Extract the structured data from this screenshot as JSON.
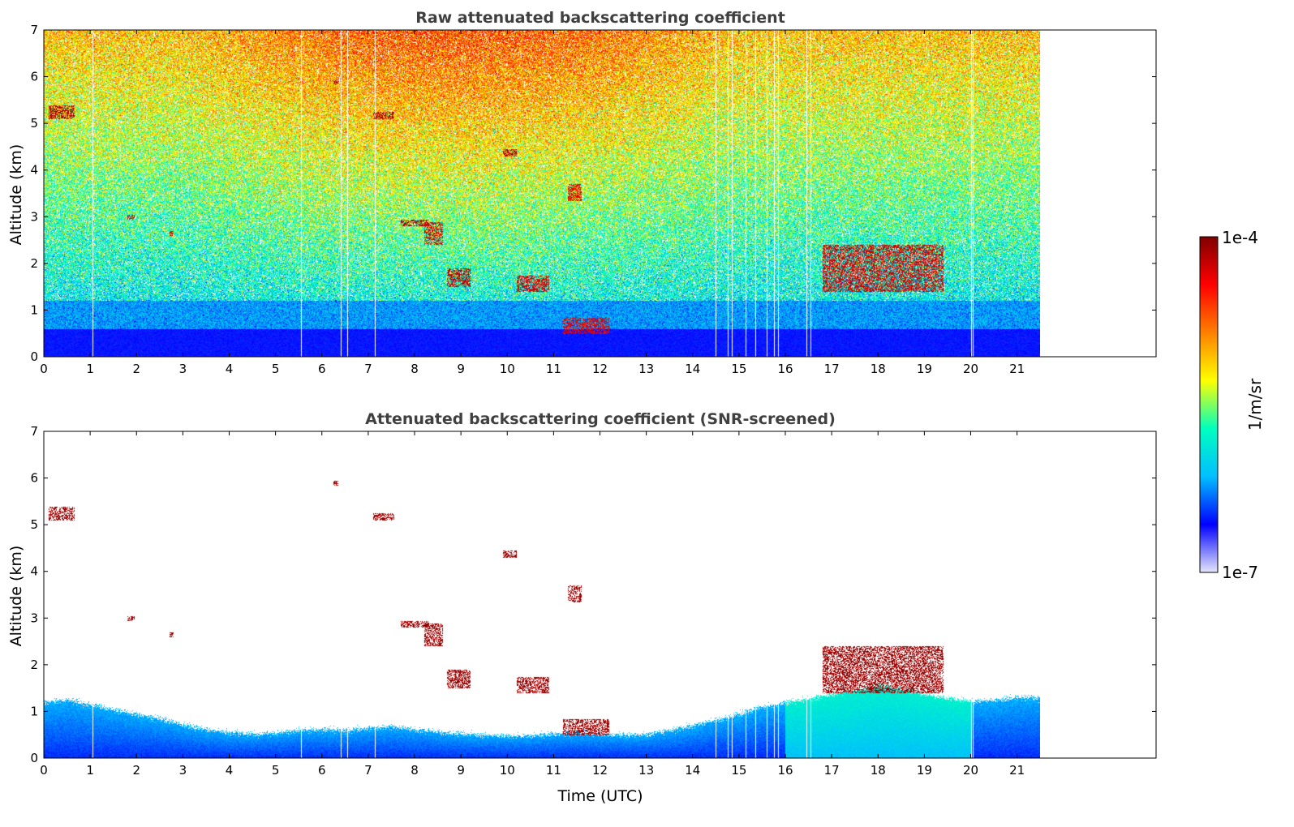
{
  "chart_data": [
    {
      "type": "heatmap",
      "title": "Raw attenuated backscattering coefficient",
      "xlabel": "",
      "ylabel": "Altitude (km)",
      "xlim": [
        0,
        24
      ],
      "ylim": [
        0,
        7
      ],
      "data_extent_x": [
        0,
        21.5
      ],
      "xticks": [
        "0",
        "1",
        "2",
        "3",
        "4",
        "5",
        "6",
        "7",
        "8",
        "9",
        "10",
        "11",
        "12",
        "13",
        "14",
        "15",
        "16",
        "17",
        "18",
        "19",
        "20",
        "21"
      ],
      "yticks": [
        "0",
        "1",
        "2",
        "3",
        "4",
        "5",
        "6",
        "7"
      ],
      "colorscale": "jet",
      "background": "noisy",
      "gaps_utc": [
        1.05,
        5.55,
        6.4,
        6.55,
        7.15,
        14.5,
        14.75,
        14.85,
        15.15,
        15.35,
        15.6,
        15.75,
        15.85,
        16.45,
        16.55,
        20.0,
        20.05
      ],
      "features": [
        {
          "x0": 0.1,
          "x1": 0.65,
          "y0": 5.1,
          "y1": 5.4,
          "level": 0.95
        },
        {
          "x0": 1.8,
          "x1": 1.95,
          "y0": 2.95,
          "y1": 3.05,
          "level": 0.9
        },
        {
          "x0": 2.7,
          "x1": 2.8,
          "y0": 2.6,
          "y1": 2.7,
          "level": 0.9
        },
        {
          "x0": 6.25,
          "x1": 6.35,
          "y0": 5.85,
          "y1": 5.95,
          "level": 0.95
        },
        {
          "x0": 7.1,
          "x1": 7.55,
          "y0": 5.1,
          "y1": 5.25,
          "level": 0.95
        },
        {
          "x0": 7.7,
          "x1": 8.3,
          "y0": 2.8,
          "y1": 2.95,
          "level": 0.95
        },
        {
          "x0": 8.2,
          "x1": 8.6,
          "y0": 2.4,
          "y1": 2.9,
          "level": 0.9
        },
        {
          "x0": 8.7,
          "x1": 9.2,
          "y0": 1.5,
          "y1": 1.9,
          "level": 0.92
        },
        {
          "x0": 9.9,
          "x1": 10.2,
          "y0": 4.3,
          "y1": 4.45,
          "level": 0.95
        },
        {
          "x0": 10.2,
          "x1": 10.9,
          "y0": 1.4,
          "y1": 1.75,
          "level": 0.9
        },
        {
          "x0": 11.2,
          "x1": 12.2,
          "y0": 0.5,
          "y1": 0.85,
          "level": 0.88
        },
        {
          "x0": 11.3,
          "x1": 11.6,
          "y0": 3.35,
          "y1": 3.7,
          "level": 0.88
        },
        {
          "x0": 16.8,
          "x1": 19.4,
          "y0": 1.4,
          "y1": 2.4,
          "level": 0.9
        }
      ]
    },
    {
      "type": "heatmap",
      "title": "Attenuated backscattering coefficient (SNR-screened)",
      "xlabel": "Time (UTC)",
      "ylabel": "Altitude (km)",
      "xlim": [
        0,
        24
      ],
      "ylim": [
        0,
        7
      ],
      "data_extent_x": [
        0,
        21.5
      ],
      "xticks": [
        "0",
        "1",
        "2",
        "3",
        "4",
        "5",
        "6",
        "7",
        "8",
        "9",
        "10",
        "11",
        "12",
        "13",
        "14",
        "15",
        "16",
        "17",
        "18",
        "19",
        "20",
        "21"
      ],
      "yticks": [
        "0",
        "1",
        "2",
        "3",
        "4",
        "5",
        "6",
        "7"
      ],
      "colorscale": "jet",
      "background": "screened",
      "boundary_layer_top_km": [
        [
          0,
          1.2
        ],
        [
          0.5,
          1.25
        ],
        [
          1.0,
          1.15
        ],
        [
          1.5,
          1.05
        ],
        [
          2.0,
          0.95
        ],
        [
          2.5,
          0.85
        ],
        [
          3.0,
          0.72
        ],
        [
          3.5,
          0.62
        ],
        [
          4.0,
          0.55
        ],
        [
          4.5,
          0.52
        ],
        [
          5.0,
          0.55
        ],
        [
          5.5,
          0.6
        ],
        [
          6.0,
          0.62
        ],
        [
          6.5,
          0.6
        ],
        [
          7.0,
          0.65
        ],
        [
          7.5,
          0.68
        ],
        [
          8.0,
          0.62
        ],
        [
          8.5,
          0.57
        ],
        [
          9.0,
          0.52
        ],
        [
          9.5,
          0.5
        ],
        [
          10.0,
          0.48
        ],
        [
          10.5,
          0.5
        ],
        [
          11.0,
          0.52
        ],
        [
          11.5,
          0.55
        ],
        [
          12.0,
          0.52
        ],
        [
          12.5,
          0.5
        ],
        [
          13.0,
          0.52
        ],
        [
          13.5,
          0.6
        ],
        [
          14.0,
          0.7
        ],
        [
          14.5,
          0.82
        ],
        [
          15.0,
          0.95
        ],
        [
          15.5,
          1.1
        ],
        [
          16.0,
          1.2
        ],
        [
          16.5,
          1.28
        ],
        [
          17.0,
          1.38
        ],
        [
          17.5,
          1.45
        ],
        [
          18.0,
          1.55
        ],
        [
          18.5,
          1.5
        ],
        [
          19.0,
          1.38
        ],
        [
          19.5,
          1.28
        ],
        [
          20.0,
          1.22
        ],
        [
          20.5,
          1.25
        ],
        [
          21.0,
          1.3
        ],
        [
          21.5,
          1.3
        ]
      ],
      "gaps_utc": [
        1.05,
        5.55,
        6.4,
        6.55,
        7.15,
        14.5,
        14.75,
        14.85,
        15.15,
        15.35,
        15.6,
        15.75,
        15.85,
        16.45,
        16.55,
        20.0,
        20.05
      ],
      "features": [
        {
          "x0": 0.1,
          "x1": 0.65,
          "y0": 5.1,
          "y1": 5.4,
          "level": 0.97
        },
        {
          "x0": 1.8,
          "x1": 1.95,
          "y0": 2.95,
          "y1": 3.05,
          "level": 0.97
        },
        {
          "x0": 2.7,
          "x1": 2.8,
          "y0": 2.6,
          "y1": 2.7,
          "level": 0.97
        },
        {
          "x0": 6.25,
          "x1": 6.35,
          "y0": 5.85,
          "y1": 5.95,
          "level": 0.97
        },
        {
          "x0": 7.1,
          "x1": 7.55,
          "y0": 5.1,
          "y1": 5.25,
          "level": 0.97
        },
        {
          "x0": 7.7,
          "x1": 8.3,
          "y0": 2.8,
          "y1": 2.95,
          "level": 0.97
        },
        {
          "x0": 8.2,
          "x1": 8.6,
          "y0": 2.4,
          "y1": 2.9,
          "level": 0.97
        },
        {
          "x0": 8.7,
          "x1": 9.2,
          "y0": 1.5,
          "y1": 1.9,
          "level": 0.97
        },
        {
          "x0": 9.9,
          "x1": 10.2,
          "y0": 4.3,
          "y1": 4.45,
          "level": 0.97
        },
        {
          "x0": 10.2,
          "x1": 10.9,
          "y0": 1.4,
          "y1": 1.75,
          "level": 0.97
        },
        {
          "x0": 11.2,
          "x1": 12.2,
          "y0": 0.5,
          "y1": 0.85,
          "level": 0.97
        },
        {
          "x0": 11.3,
          "x1": 11.6,
          "y0": 3.35,
          "y1": 3.7,
          "level": 0.97
        },
        {
          "x0": 16.8,
          "x1": 19.4,
          "y0": 1.4,
          "y1": 2.4,
          "level": 0.97
        }
      ]
    }
  ],
  "colorbar": {
    "label": "1/m/sr",
    "max_label": "1e-4",
    "min_label": "1e-7",
    "stops": [
      "#e6e6fa",
      "#0000ff",
      "#00bfff",
      "#00ffbf",
      "#ffff00",
      "#ff8000",
      "#ff0000",
      "#800000"
    ]
  }
}
